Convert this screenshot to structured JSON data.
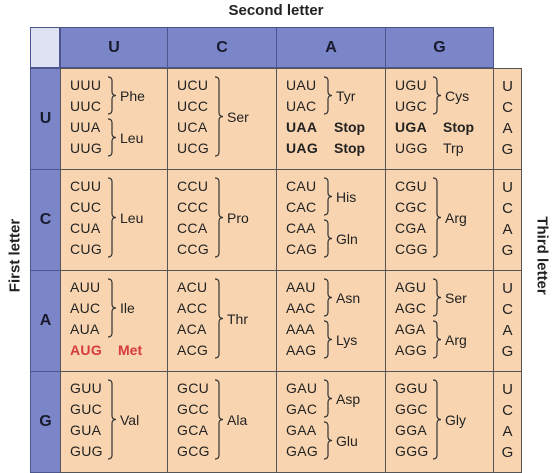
{
  "axis": {
    "second": "Second letter",
    "first": "First letter",
    "third": "Third letter"
  },
  "second_letters": [
    "U",
    "C",
    "A",
    "G"
  ],
  "first_letters": [
    "U",
    "C",
    "A",
    "G"
  ],
  "third_letters": [
    "U",
    "C",
    "A",
    "G"
  ],
  "cells": [
    [
      {
        "codons": [
          "UUU",
          "UUC",
          "UUA",
          "UUG"
        ],
        "groups": [
          {
            "aa": "Phe",
            "rows": [
              0,
              1
            ]
          },
          {
            "aa": "Leu",
            "rows": [
              2,
              3
            ]
          }
        ]
      },
      {
        "codons": [
          "UCU",
          "UCC",
          "UCA",
          "UCG"
        ],
        "groups": [
          {
            "aa": "Ser",
            "rows": [
              0,
              3
            ]
          }
        ]
      },
      {
        "codons": [
          "UAU",
          "UAC",
          "UAA",
          "UAG"
        ],
        "groups": [
          {
            "aa": "Tyr",
            "rows": [
              0,
              1
            ]
          },
          {
            "aa": "Stop",
            "rows": [
              2,
              2
            ],
            "style": "stop"
          },
          {
            "aa": "Stop",
            "rows": [
              3,
              3
            ],
            "style": "stop"
          }
        ]
      },
      {
        "codons": [
          "UGU",
          "UGC",
          "UGA",
          "UGG"
        ],
        "groups": [
          {
            "aa": "Cys",
            "rows": [
              0,
              1
            ]
          },
          {
            "aa": "Stop",
            "rows": [
              2,
              2
            ],
            "style": "stop"
          },
          {
            "aa": "Trp",
            "rows": [
              3,
              3
            ],
            "style": "plain"
          }
        ]
      }
    ],
    [
      {
        "codons": [
          "CUU",
          "CUC",
          "CUA",
          "CUG"
        ],
        "groups": [
          {
            "aa": "Leu",
            "rows": [
              0,
              3
            ]
          }
        ]
      },
      {
        "codons": [
          "CCU",
          "CCC",
          "CCA",
          "CCG"
        ],
        "groups": [
          {
            "aa": "Pro",
            "rows": [
              0,
              3
            ]
          }
        ]
      },
      {
        "codons": [
          "CAU",
          "CAC",
          "CAA",
          "CAG"
        ],
        "groups": [
          {
            "aa": "His",
            "rows": [
              0,
              1
            ]
          },
          {
            "aa": "Gln",
            "rows": [
              2,
              3
            ]
          }
        ]
      },
      {
        "codons": [
          "CGU",
          "CGC",
          "CGA",
          "CGG"
        ],
        "groups": [
          {
            "aa": "Arg",
            "rows": [
              0,
              3
            ]
          }
        ]
      }
    ],
    [
      {
        "codons": [
          "AUU",
          "AUC",
          "AUA",
          "AUG"
        ],
        "groups": [
          {
            "aa": "Ile",
            "rows": [
              0,
              2
            ]
          },
          {
            "aa": "Met",
            "rows": [
              3,
              3
            ],
            "style": "start"
          }
        ]
      },
      {
        "codons": [
          "ACU",
          "ACC",
          "ACA",
          "ACG"
        ],
        "groups": [
          {
            "aa": "Thr",
            "rows": [
              0,
              3
            ]
          }
        ]
      },
      {
        "codons": [
          "AAU",
          "AAC",
          "AAA",
          "AAG"
        ],
        "groups": [
          {
            "aa": "Asn",
            "rows": [
              0,
              1
            ]
          },
          {
            "aa": "Lys",
            "rows": [
              2,
              3
            ]
          }
        ]
      },
      {
        "codons": [
          "AGU",
          "AGC",
          "AGA",
          "AGG"
        ],
        "groups": [
          {
            "aa": "Ser",
            "rows": [
              0,
              1
            ]
          },
          {
            "aa": "Arg",
            "rows": [
              2,
              3
            ]
          }
        ]
      }
    ],
    [
      {
        "codons": [
          "GUU",
          "GUC",
          "GUA",
          "GUG"
        ],
        "groups": [
          {
            "aa": "Val",
            "rows": [
              0,
              3
            ]
          }
        ]
      },
      {
        "codons": [
          "GCU",
          "GCC",
          "GCA",
          "GCG"
        ],
        "groups": [
          {
            "aa": "Ala",
            "rows": [
              0,
              3
            ]
          }
        ]
      },
      {
        "codons": [
          "GAU",
          "GAC",
          "GAA",
          "GAG"
        ],
        "groups": [
          {
            "aa": "Asp",
            "rows": [
              0,
              1
            ]
          },
          {
            "aa": "Glu",
            "rows": [
              2,
              3
            ]
          }
        ]
      },
      {
        "codons": [
          "GGU",
          "GGC",
          "GGA",
          "GGG"
        ],
        "groups": [
          {
            "aa": "Gly",
            "rows": [
              0,
              3
            ]
          }
        ]
      }
    ]
  ],
  "colors": {
    "header": "#7b86c8",
    "cell": "#f8d5b0",
    "start_codon": "#d63a3a"
  }
}
